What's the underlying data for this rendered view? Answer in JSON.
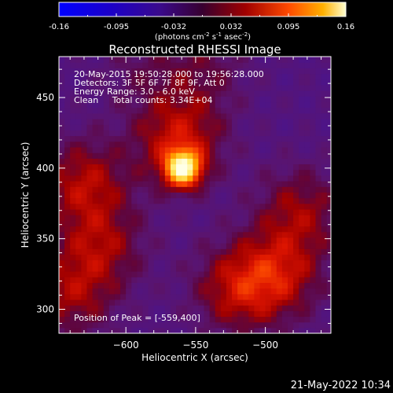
{
  "colorbar": {
    "ticks": [
      "-0.16",
      "-0.095",
      "-0.032",
      "0.032",
      "0.095",
      "0.16"
    ],
    "units": "(photons cm",
    "units_exp1": "-2",
    "units_mid": " s",
    "units_exp2": "-1",
    "units_end": " asec",
    "units_exp3": "-2",
    "units_close": ")"
  },
  "chart_data": {
    "type": "heatmap",
    "title": "Reconstructed RHESSI Image",
    "xlabel": "Heliocentric X (arcsec)",
    "ylabel": "Heliocentric Y (arcsec)",
    "xlim": [
      -648,
      -453
    ],
    "ylim": [
      283,
      479
    ],
    "x_ticks": [
      -600,
      -550,
      -500
    ],
    "x_tick_labels": [
      "−600",
      "−550",
      "−500"
    ],
    "y_ticks": [
      300,
      350,
      400,
      450
    ],
    "y_tick_labels": [
      "300",
      "350",
      "400",
      "450"
    ],
    "colorbar_range": [
      -0.16,
      0.16
    ],
    "peak_position": [
      -559,
      400
    ],
    "sources": [
      {
        "x": -559,
        "y": 400,
        "strength": 0.16
      },
      {
        "x": -562,
        "y": 420,
        "strength": 0.07
      },
      {
        "x": -630,
        "y": 390,
        "strength": 0.06
      },
      {
        "x": -618,
        "y": 345,
        "strength": 0.05
      },
      {
        "x": -640,
        "y": 310,
        "strength": 0.05
      },
      {
        "x": -520,
        "y": 315,
        "strength": 0.06
      },
      {
        "x": -490,
        "y": 325,
        "strength": 0.06
      },
      {
        "x": -475,
        "y": 370,
        "strength": 0.05
      },
      {
        "x": -545,
        "y": 470,
        "strength": 0.03
      },
      {
        "x": -590,
        "y": 470,
        "strength": 0.02
      }
    ],
    "annotations": [
      "20-May-2015 19:50:28.000 to 19:56:28.000",
      "Detectors: 3F 5F 6F 7F 8F 9F, Att 0",
      "Energy Range: 3.0 - 6.0 keV",
      "Clean     Total counts: 3.34E+04",
      "Position of Peak = [-559,400]"
    ]
  },
  "footer": {
    "timestamp": "21-May-2022 10:34"
  },
  "colors": {
    "background": "#000000",
    "text": "#ffffff"
  }
}
